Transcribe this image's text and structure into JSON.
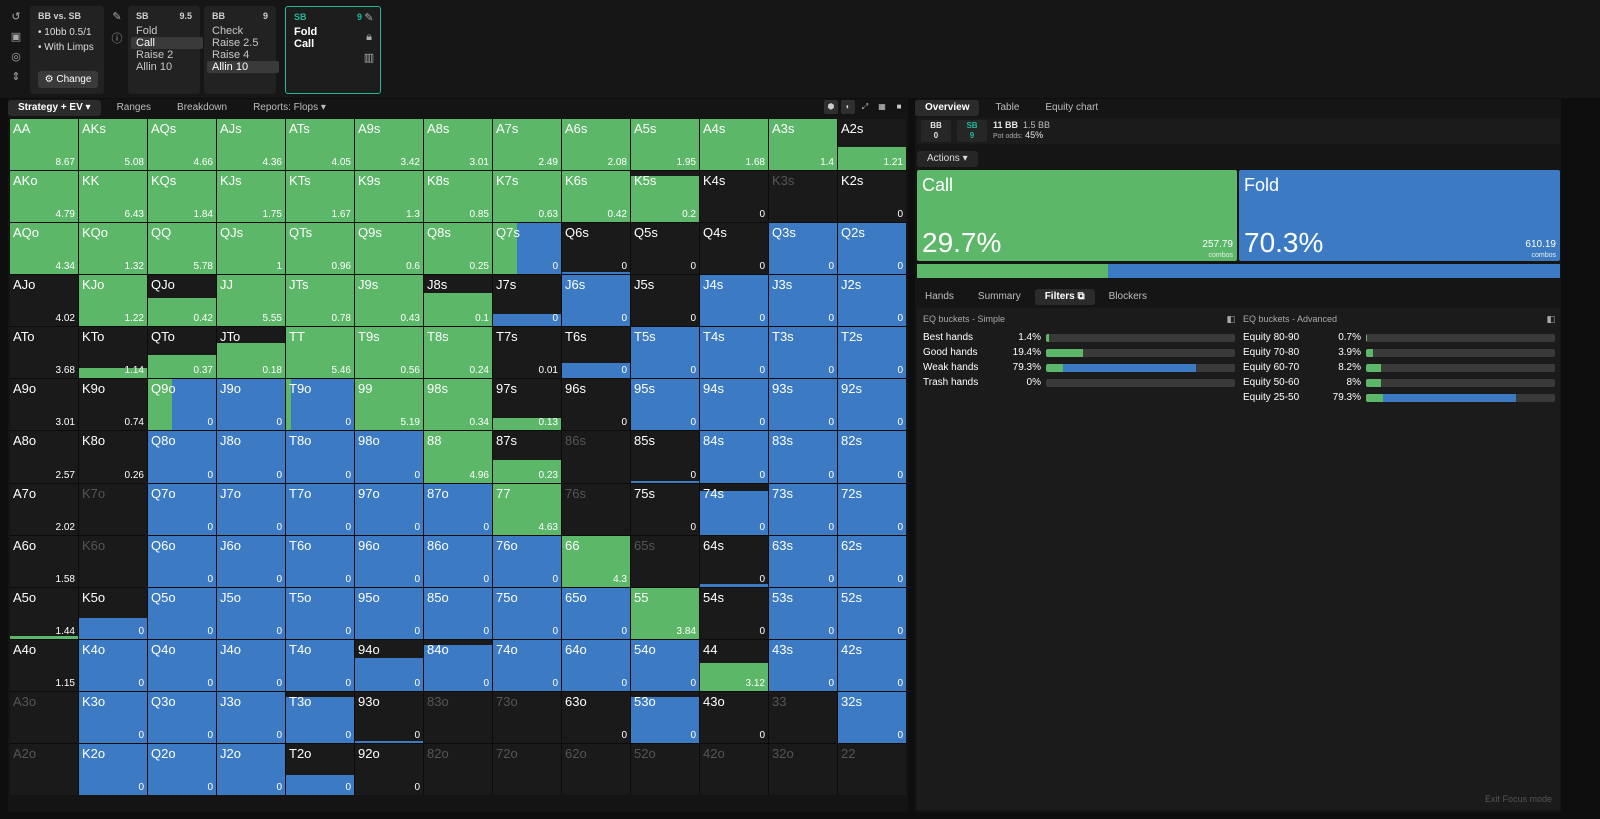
{
  "nodes": {
    "info": {
      "title": "BB vs. SB",
      "lines": [
        "10bb 0.5/1",
        "With Limps"
      ],
      "change_label": "⚙ Change"
    },
    "sb1": {
      "pos": "SB",
      "stack": "9.5",
      "options": [
        "Fold",
        "Call",
        "Raise 2",
        "Allin 10"
      ],
      "selected": 1
    },
    "bb": {
      "pos": "BB",
      "stack": "9",
      "options": [
        "Check",
        "Raise 2.5",
        "Raise 4",
        "Allin 10"
      ],
      "selected": 3
    },
    "sb2": {
      "pos": "SB",
      "stack": "9",
      "options": [
        "Fold",
        "Call"
      ]
    }
  },
  "left_tabs": [
    "Strategy + EV ▾",
    "Ranges",
    "Breakdown",
    "Reports: Flops ▾"
  ],
  "right_tabs": [
    "Overview",
    "Table",
    "Equity chart"
  ],
  "pot": {
    "bb_label": "BB",
    "bb_val": "0",
    "sb_label": "SB",
    "sb_val": "9",
    "pot": "11 BB",
    "pot_extra": "1.5 BB",
    "odds_label": "Pot odds:",
    "odds": "45%"
  },
  "actions_label": "Actions ▾",
  "actions": [
    {
      "name": "Call",
      "pct": "29.7%",
      "combos": "257.79",
      "unit": "combos",
      "color": "#5cb768"
    },
    {
      "name": "Fold",
      "pct": "70.3%",
      "combos": "610.19",
      "unit": "combos",
      "color": "#3c7bc4"
    }
  ],
  "call_fraction": 0.297,
  "sub_tabs": [
    "Hands",
    "Summary",
    "Filters",
    "Blockers"
  ],
  "simple": {
    "title": "EQ buckets - Simple",
    "rows": [
      {
        "name": "Best hands",
        "pct": "1.4%",
        "call": 0.014,
        "fold": 0
      },
      {
        "name": "Good hands",
        "pct": "19.4%",
        "call": 0.194,
        "fold": 0
      },
      {
        "name": "Weak hands",
        "pct": "79.3%",
        "call": 0.09,
        "fold": 0.703
      },
      {
        "name": "Trash hands",
        "pct": "0%",
        "call": 0,
        "fold": 0
      }
    ]
  },
  "advanced": {
    "title": "EQ buckets - Advanced",
    "rows": [
      {
        "name": "Equity 80-90",
        "pct": "0.7%",
        "call": 0.007,
        "fold": 0
      },
      {
        "name": "Equity 70-80",
        "pct": "3.9%",
        "call": 0.039,
        "fold": 0
      },
      {
        "name": "Equity 60-70",
        "pct": "8.2%",
        "call": 0.082,
        "fold": 0
      },
      {
        "name": "Equity 50-60",
        "pct": "8%",
        "call": 0.08,
        "fold": 0
      },
      {
        "name": "Equity 25-50",
        "pct": "79.3%",
        "call": 0.09,
        "fold": 0.703
      }
    ]
  },
  "exit_focus": "Exit Focus mode",
  "matrix": [
    [
      [
        "AA",
        1,
        "8.67"
      ],
      [
        "AKs",
        1,
        "5.08"
      ],
      [
        "AQs",
        1,
        "4.66"
      ],
      [
        "AJs",
        1,
        "4.36"
      ],
      [
        "ATs",
        1,
        "4.05"
      ],
      [
        "A9s",
        1,
        "3.42"
      ],
      [
        "A8s",
        1,
        "3.01"
      ],
      [
        "A7s",
        1,
        "2.49"
      ],
      [
        "A6s",
        1,
        "2.08"
      ],
      [
        "A5s",
        1,
        "1.95"
      ],
      [
        "A4s",
        1,
        "1.68"
      ],
      [
        "A3s",
        1,
        "1.4"
      ],
      [
        "A2s",
        0.45,
        "1.21"
      ]
    ],
    [
      [
        "AKo",
        1,
        "4.79"
      ],
      [
        "KK",
        1,
        "6.43"
      ],
      [
        "KQs",
        1,
        "1.84"
      ],
      [
        "KJs",
        1,
        "1.75"
      ],
      [
        "KTs",
        1,
        "1.67"
      ],
      [
        "K9s",
        1,
        "1.3"
      ],
      [
        "K8s",
        1,
        "0.85"
      ],
      [
        "K7s",
        1,
        "0.63"
      ],
      [
        "K6s",
        1,
        "0.42"
      ],
      [
        "K5s",
        0.9,
        "0.2"
      ],
      [
        "K4s",
        0,
        "0"
      ],
      [
        "K3s",
        -1,
        ""
      ],
      [
        "K2s",
        -0.6,
        "0"
      ]
    ],
    [
      [
        "AQo",
        1,
        "4.34"
      ],
      [
        "KQo",
        1,
        "1.32"
      ],
      [
        "QQ",
        1,
        "5.78"
      ],
      [
        "QJs",
        1,
        "1"
      ],
      [
        "QTs",
        1,
        "0.96"
      ],
      [
        "Q9s",
        1,
        "0.6"
      ],
      [
        "Q8s",
        1,
        "0.25"
      ],
      [
        "Q7s",
        0.35,
        "0",
        1
      ],
      [
        "Q6s",
        0,
        "0",
        0.04
      ],
      [
        "Q5s",
        0,
        "0"
      ],
      [
        "Q4s",
        0,
        "0"
      ],
      [
        "Q3s",
        0,
        "0",
        1
      ],
      [
        "Q2s",
        0,
        "0",
        1
      ]
    ],
    [
      [
        "AJo",
        0,
        "4.02",
        0
      ],
      [
        "KJo",
        1,
        "1.22"
      ],
      [
        "QJo",
        0.55,
        "0.42",
        0
      ],
      [
        "JJ",
        1,
        "5.55"
      ],
      [
        "JTs",
        1,
        "0.78"
      ],
      [
        "J9s",
        1,
        "0.43"
      ],
      [
        "J8s",
        0.65,
        "0.1",
        0
      ],
      [
        "J7s",
        0,
        "0",
        0.25
      ],
      [
        "J6s",
        0,
        "0",
        1
      ],
      [
        "J5s",
        0,
        "0"
      ],
      [
        "J4s",
        0,
        "0",
        1
      ],
      [
        "J3s",
        0,
        "0",
        1
      ],
      [
        "J2s",
        0,
        "0",
        1
      ]
    ],
    [
      [
        "ATo",
        0,
        "3.68",
        0
      ],
      [
        "KTo",
        0.2,
        "1.14",
        0
      ],
      [
        "QTo",
        0.45,
        "0.37",
        0
      ],
      [
        "JTo",
        0.7,
        "0.18",
        0
      ],
      [
        "TT",
        1,
        "5.46"
      ],
      [
        "T9s",
        1,
        "0.56"
      ],
      [
        "T8s",
        1,
        "0.24"
      ],
      [
        "T7s",
        0,
        "0.01",
        0
      ],
      [
        "T6s",
        0,
        "0",
        0.3
      ],
      [
        "T5s",
        0,
        "0",
        1
      ],
      [
        "T4s",
        0,
        "0",
        1
      ],
      [
        "T3s",
        0,
        "0",
        1
      ],
      [
        "T2s",
        0,
        "0",
        1
      ]
    ],
    [
      [
        "A9o",
        0,
        "3.01",
        0
      ],
      [
        "K9o",
        0,
        "0.74",
        0
      ],
      [
        "Q9o",
        0.45,
        "0",
        1,
        "call-narrow"
      ],
      [
        "J9o",
        0,
        "0",
        1
      ],
      [
        "T9o",
        0.1,
        "0",
        1,
        "call-narrow"
      ],
      [
        "99",
        1,
        "5.19"
      ],
      [
        "98s",
        1,
        "0.34"
      ],
      [
        "97s",
        0.25,
        "0.13",
        0
      ],
      [
        "96s",
        0,
        "0",
        0
      ],
      [
        "95s",
        0,
        "0",
        1
      ],
      [
        "94s",
        0,
        "0",
        1
      ],
      [
        "93s",
        0,
        "0",
        1
      ],
      [
        "92s",
        0,
        "0",
        1
      ]
    ],
    [
      [
        "A8o",
        0,
        "2.57",
        0
      ],
      [
        "K8o",
        0,
        "0.26",
        0
      ],
      [
        "Q8o",
        0,
        "0",
        1
      ],
      [
        "J8o",
        0,
        "0",
        1
      ],
      [
        "T8o",
        0,
        "0",
        1
      ],
      [
        "98o",
        0,
        "0",
        1
      ],
      [
        "88",
        1,
        "4.96"
      ],
      [
        "87s",
        0.45,
        "0.23",
        0
      ],
      [
        "86s",
        -1,
        ""
      ],
      [
        "85s",
        0,
        "0",
        0.03
      ],
      [
        "84s",
        0,
        "0",
        1
      ],
      [
        "83s",
        0,
        "0",
        1
      ],
      [
        "82s",
        0,
        "0",
        1
      ]
    ],
    [
      [
        "A7o",
        0,
        "2.02",
        0
      ],
      [
        "K7o",
        -1,
        ""
      ],
      [
        "Q7o",
        0,
        "0",
        1
      ],
      [
        "J7o",
        0,
        "0",
        1
      ],
      [
        "T7o",
        0,
        "0",
        1
      ],
      [
        "97o",
        0,
        "0",
        1
      ],
      [
        "87o",
        0,
        "0",
        1
      ],
      [
        "77",
        1,
        "4.63"
      ],
      [
        "76s",
        -1,
        ""
      ],
      [
        "75s",
        0,
        "0",
        0
      ],
      [
        "74s",
        0,
        "0",
        0.85
      ],
      [
        "73s",
        0,
        "0",
        1
      ],
      [
        "72s",
        0,
        "0",
        1
      ]
    ],
    [
      [
        "A6o",
        0,
        "1.58",
        0
      ],
      [
        "K6o",
        -1,
        ""
      ],
      [
        "Q6o",
        0,
        "0",
        1
      ],
      [
        "J6o",
        0,
        "0",
        1
      ],
      [
        "T6o",
        0,
        "0",
        1
      ],
      [
        "96o",
        0,
        "0",
        1
      ],
      [
        "86o",
        0,
        "0",
        1
      ],
      [
        "76o",
        0,
        "0",
        1
      ],
      [
        "66",
        1,
        "4.3"
      ],
      [
        "65s",
        -1,
        ""
      ],
      [
        "64s",
        0,
        "0",
        0.05
      ],
      [
        "63s",
        0,
        "0",
        1
      ],
      [
        "62s",
        0,
        "0",
        1
      ]
    ],
    [
      [
        "A5o",
        0.05,
        "1.44",
        0
      ],
      [
        "K5o",
        0,
        "0",
        0.4
      ],
      [
        "Q5o",
        0,
        "0",
        1
      ],
      [
        "J5o",
        0,
        "0",
        1
      ],
      [
        "T5o",
        0,
        "0",
        1
      ],
      [
        "95o",
        0,
        "0",
        1
      ],
      [
        "85o",
        0,
        "0",
        1
      ],
      [
        "75o",
        0,
        "0",
        1
      ],
      [
        "65o",
        0,
        "0",
        1
      ],
      [
        "55",
        1,
        "3.84"
      ],
      [
        "54s",
        0,
        "0",
        0
      ],
      [
        "53s",
        0,
        "0",
        1
      ],
      [
        "52s",
        0,
        "0",
        1
      ]
    ],
    [
      [
        "A4o",
        0,
        "1.15",
        0
      ],
      [
        "K4o",
        0,
        "0",
        1
      ],
      [
        "Q4o",
        0,
        "0",
        1
      ],
      [
        "J4o",
        0,
        "0",
        1
      ],
      [
        "T4o",
        0,
        "0",
        1
      ],
      [
        "94o",
        0,
        "0",
        0.65
      ],
      [
        "84o",
        0,
        "0",
        0.9
      ],
      [
        "74o",
        0,
        "0",
        1
      ],
      [
        "64o",
        0,
        "0",
        1
      ],
      [
        "54o",
        0,
        "0",
        1
      ],
      [
        "44",
        0.55,
        "3.12",
        0
      ],
      [
        "43s",
        0,
        "0",
        1
      ],
      [
        "42s",
        0,
        "0",
        1
      ]
    ],
    [
      [
        "A3o",
        -1,
        ""
      ],
      [
        "K3o",
        0,
        "0",
        1
      ],
      [
        "Q3o",
        0,
        "0",
        1
      ],
      [
        "J3o",
        0,
        "0",
        1
      ],
      [
        "T3o",
        0,
        "0",
        0.9
      ],
      [
        "93o",
        0,
        "0",
        0.04
      ],
      [
        "83o",
        -1,
        ""
      ],
      [
        "73o",
        -1,
        ""
      ],
      [
        "63o",
        0,
        "0",
        0
      ],
      [
        "53o",
        0,
        "0",
        0.9
      ],
      [
        "43o",
        0,
        "0",
        0
      ],
      [
        "33",
        -1,
        ""
      ],
      [
        "32s",
        0,
        "0",
        1
      ]
    ],
    [
      [
        "A2o",
        -1,
        ""
      ],
      [
        "K2o",
        0,
        "0",
        1
      ],
      [
        "Q2o",
        0,
        "0",
        1
      ],
      [
        "J2o",
        0,
        "0",
        1
      ],
      [
        "T2o",
        0,
        "0",
        0.4
      ],
      [
        "92o",
        0,
        "0",
        0
      ],
      [
        "82o",
        -1,
        ""
      ],
      [
        "72o",
        -1,
        ""
      ],
      [
        "62o",
        -1,
        ""
      ],
      [
        "52o",
        -1,
        ""
      ],
      [
        "42o",
        -1,
        ""
      ],
      [
        "32o",
        -1,
        ""
      ],
      [
        "22",
        -1,
        ""
      ]
    ]
  ]
}
